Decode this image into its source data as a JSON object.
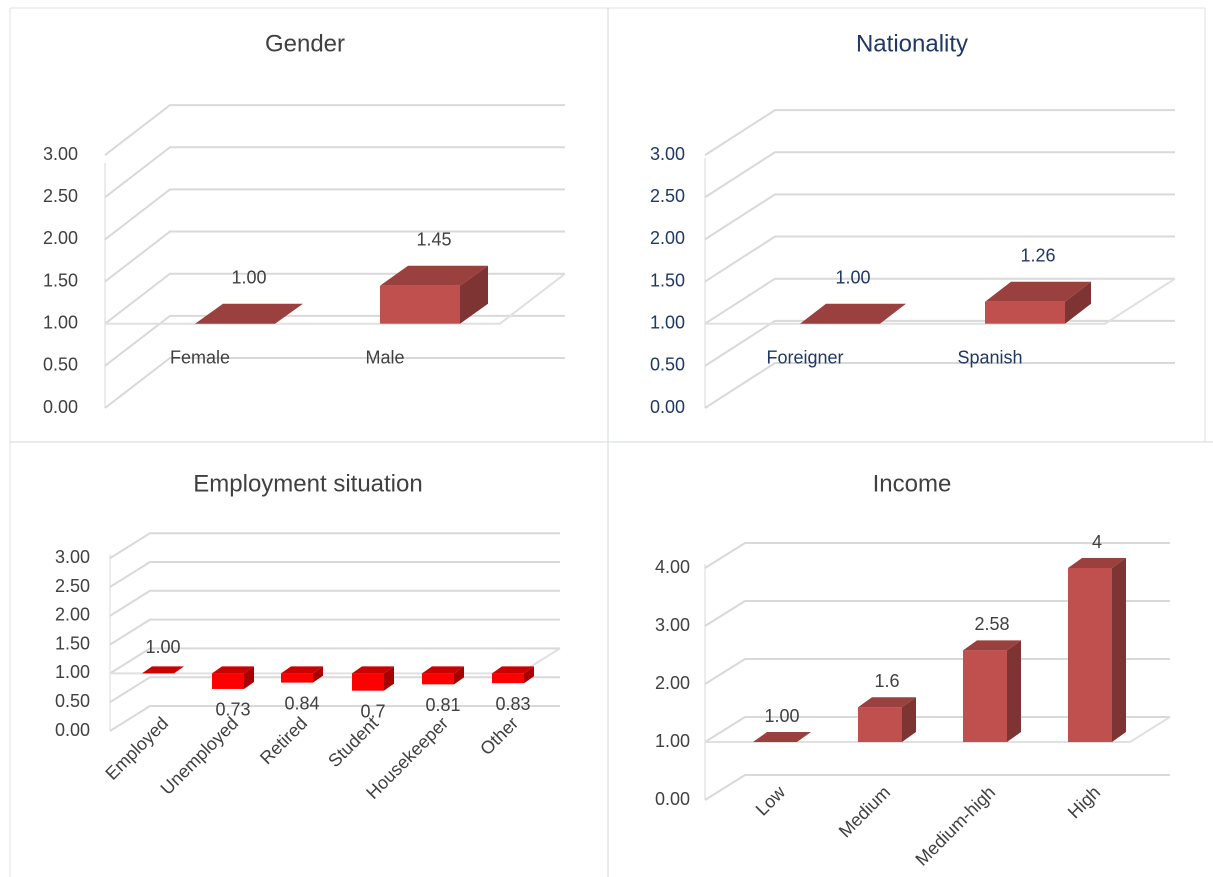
{
  "chart_data": [
    {
      "type": "bar",
      "title": "Gender",
      "categories": [
        "Female",
        "Male"
      ],
      "values": [
        1,
        1.45
      ],
      "value_labels": [
        "1.00",
        "1.45"
      ],
      "color": "#c0504d",
      "text_color": "#404040",
      "baseline": 1,
      "ylim": [
        0,
        3.5
      ],
      "yticks": [
        {
          "value": 0,
          "label": "0.00"
        },
        {
          "value": 0.5,
          "label": "0.50"
        },
        {
          "value": 1,
          "label": "1.00"
        },
        {
          "value": 1.5,
          "label": "1.50"
        },
        {
          "value": 2,
          "label": "2.00"
        },
        {
          "value": 2.5,
          "label": "2.50"
        },
        {
          "value": 3,
          "label": "3.00"
        }
      ],
      "grid": true
    },
    {
      "type": "bar",
      "title": "Nationality",
      "categories": [
        "Foreigner",
        "Spanish"
      ],
      "values": [
        1,
        1.26
      ],
      "value_labels": [
        "1.00",
        "1.26"
      ],
      "color": "#c0504d",
      "text_color": "#1f3864",
      "baseline": 1,
      "ylim": [
        0,
        3.5
      ],
      "yticks": [
        {
          "value": 0,
          "label": "0.00"
        },
        {
          "value": 0.5,
          "label": "0.50"
        },
        {
          "value": 1,
          "label": "1.00"
        },
        {
          "value": 1.5,
          "label": "1.50"
        },
        {
          "value": 2,
          "label": "2.00"
        },
        {
          "value": 2.5,
          "label": "2.50"
        },
        {
          "value": 3,
          "label": "3.00"
        }
      ],
      "grid": true
    },
    {
      "type": "bar",
      "title": "Employment situation",
      "categories": [
        "Employed",
        "Unemployed",
        "Retired",
        "Student",
        "Housekeeper",
        "Other"
      ],
      "values": [
        1,
        0.73,
        0.84,
        0.7,
        0.81,
        0.83
      ],
      "value_labels": [
        "1.00",
        "0.73",
        "0.84",
        "0.7",
        "0.81",
        "0.83"
      ],
      "color": "#ff0000",
      "text_color": "#404040",
      "baseline": 1,
      "ylim": [
        0,
        3.5
      ],
      "yticks": [
        {
          "value": 0,
          "label": "0.00"
        },
        {
          "value": 0.5,
          "label": "0.50"
        },
        {
          "value": 1,
          "label": "1.00"
        },
        {
          "value": 1.5,
          "label": "1.50"
        },
        {
          "value": 2,
          "label": "2.00"
        },
        {
          "value": 2.5,
          "label": "2.50"
        },
        {
          "value": 3,
          "label": "3.00"
        }
      ],
      "grid": true
    },
    {
      "type": "bar",
      "title": "Income",
      "categories": [
        "Low",
        "Medium",
        "Medium-high",
        "High"
      ],
      "values": [
        1,
        1.6,
        2.58,
        4
      ],
      "value_labels": [
        "1.00",
        "1.6",
        "2.58",
        "4"
      ],
      "color": "#c0504d",
      "text_color": "#404040",
      "baseline": 1,
      "ylim": [
        0,
        4.5
      ],
      "yticks": [
        {
          "value": 0,
          "label": "0.00"
        },
        {
          "value": 1,
          "label": "1.00"
        },
        {
          "value": 2,
          "label": "2.00"
        },
        {
          "value": 3,
          "label": "3.00"
        },
        {
          "value": 4,
          "label": "4.00"
        }
      ],
      "grid": true
    }
  ]
}
